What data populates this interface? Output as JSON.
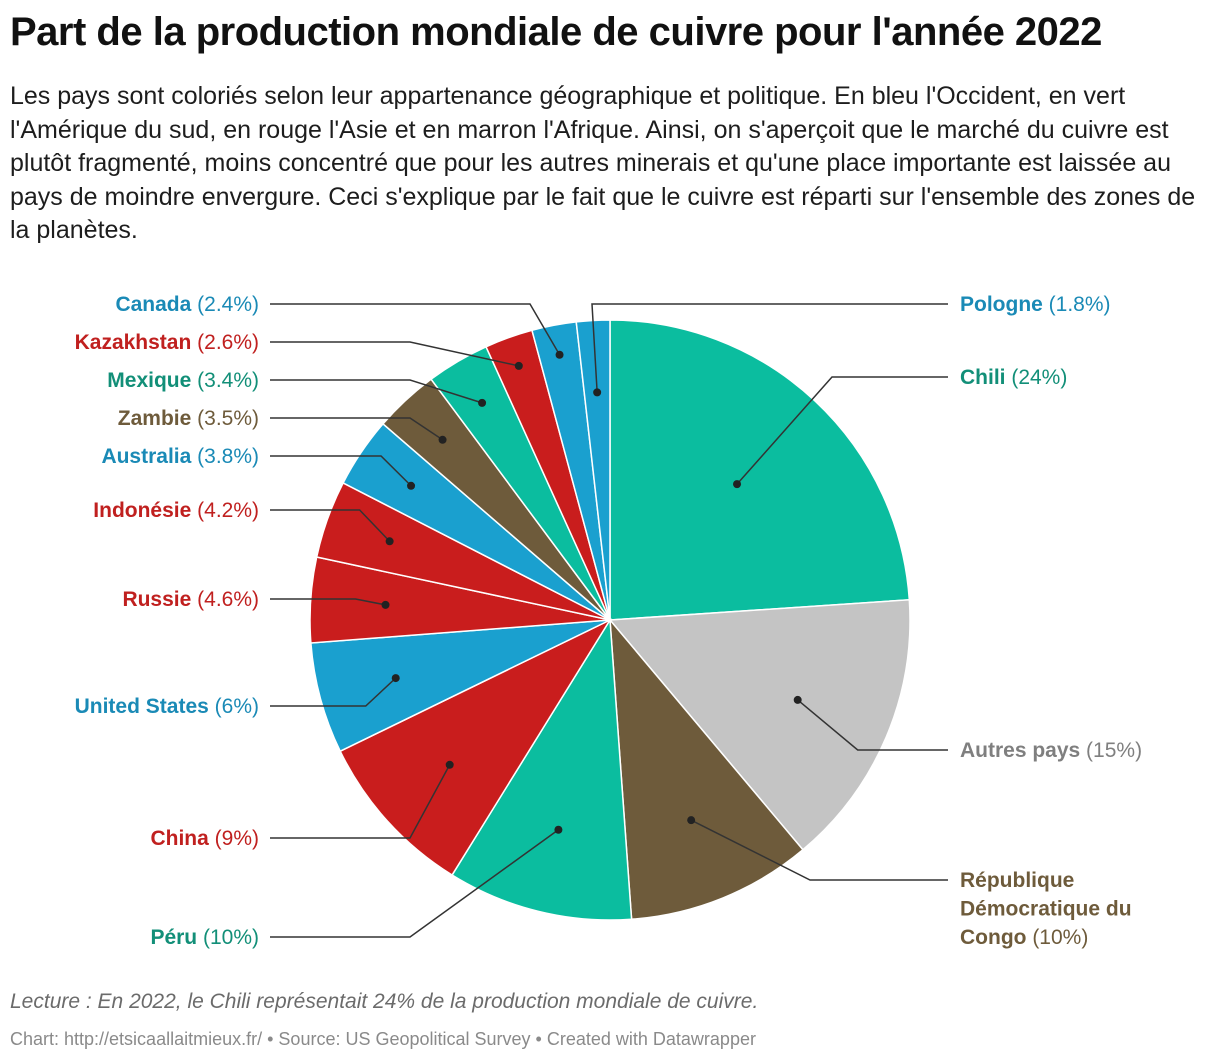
{
  "chart_data": {
    "type": "pie",
    "title": "Part de la production mondiale de cuivre pour l'année 2022",
    "subtitle": "Les pays sont coloriés selon leur appartenance géographique et politique. En bleu l'Occident, en vert l'Amérique du sud, en rouge l'Asie et en marron l'Afrique. Ainsi, on s'aperçoit que le marché du cuivre est plutôt fragmenté, moins concentré que pour les autres minerais et qu'une place importante est laissée au pays de moindre envergure. Ceci s'explique par le fait que le cuivre est réparti sur l'ensemble des zones de la planètes.",
    "slices": [
      {
        "name": "Chili",
        "value": 24,
        "label": "(24%)",
        "color": "#0bbd9f",
        "text_color": "#128f78",
        "side": "right"
      },
      {
        "name": "Autres pays",
        "value": 15,
        "label": "(15%)",
        "color": "#c4c4c4",
        "text_color": "#7f7f7f",
        "side": "right"
      },
      {
        "name": "République Démocratique du Congo",
        "label_lines": [
          "République",
          "Démocratique du",
          "Congo"
        ],
        "value": 10,
        "label": "(10%)",
        "color": "#6e5b3b",
        "text_color": "#6e5b3b",
        "side": "right"
      },
      {
        "name": "Péru",
        "value": 10,
        "label": "(10%)",
        "color": "#0bbd9f",
        "text_color": "#128f78",
        "side": "left"
      },
      {
        "name": "China",
        "value": 9,
        "label": "(9%)",
        "color": "#c91d1d",
        "text_color": "#c0201f",
        "side": "left"
      },
      {
        "name": "United States",
        "value": 6,
        "label": "(6%)",
        "color": "#1aa0cf",
        "text_color": "#1a8ab6",
        "side": "left"
      },
      {
        "name": "Russie",
        "value": 4.6,
        "label": "(4.6%)",
        "color": "#c91d1d",
        "text_color": "#c0201f",
        "side": "left"
      },
      {
        "name": "Indonésie",
        "value": 4.2,
        "label": "(4.2%)",
        "color": "#c91d1d",
        "text_color": "#c0201f",
        "side": "left"
      },
      {
        "name": "Australia",
        "value": 3.8,
        "label": "(3.8%)",
        "color": "#1aa0cf",
        "text_color": "#1a8ab6",
        "side": "left"
      },
      {
        "name": "Zambie",
        "value": 3.5,
        "label": "(3.5%)",
        "color": "#6e5b3b",
        "text_color": "#6e5b3b",
        "side": "left"
      },
      {
        "name": "Mexique",
        "value": 3.4,
        "label": "(3.4%)",
        "color": "#0bbd9f",
        "text_color": "#128f78",
        "side": "left"
      },
      {
        "name": "Kazakhstan",
        "value": 2.6,
        "label": "(2.6%)",
        "color": "#c91d1d",
        "text_color": "#c0201f",
        "side": "left"
      },
      {
        "name": "Canada",
        "value": 2.4,
        "label": "(2.4%)",
        "color": "#1aa0cf",
        "text_color": "#1a8ab6",
        "side": "left"
      },
      {
        "name": "Pologne",
        "value": 1.8,
        "label": "(1.8%)",
        "color": "#1aa0cf",
        "text_color": "#1a8ab6",
        "side": "right"
      }
    ]
  },
  "footer": {
    "note": "Lecture : En 2022, le Chili représentait 24% de la production mondiale de cuivre.",
    "chart_credit": "Chart: http://etsicaallaitmieux.fr/",
    "source": "Source: US Geopolitical Survey",
    "made_with": "Created with Datawrapper",
    "separator": " • "
  }
}
